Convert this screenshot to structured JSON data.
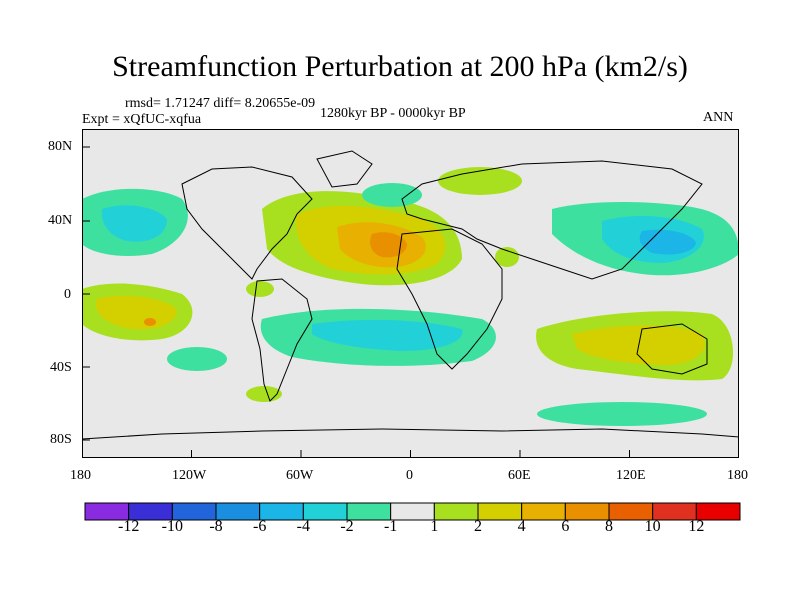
{
  "map": {
    "title": "Streamfunction Perturbation at 200 hPa (km2/s)",
    "stats_line": "rmsd= 1.71247 diff= 8.20655e-09",
    "experiment": "Expt = xQfUC-xqfua",
    "period": "1280kyr BP - 0000kyr BP",
    "season": "ANN",
    "lat_labels": [
      "80N",
      "40N",
      "0",
      "40S",
      "80S"
    ],
    "lon_labels": [
      "180",
      "120W",
      "60W",
      "0",
      "60E",
      "120E",
      "180"
    ]
  },
  "colorbar": {
    "labels": [
      "-12",
      "-10",
      "-8",
      "-6",
      "-4",
      "-2",
      "-1",
      "1",
      "2",
      "4",
      "6",
      "8",
      "10",
      "12"
    ],
    "colors": [
      "#8a2be2",
      "#3a2fd6",
      "#2264d9",
      "#1a8fe0",
      "#1cb5e8",
      "#22d0d8",
      "#3ee0a0",
      "#e8e8e8",
      "#a8e020",
      "#d4d000",
      "#e8b000",
      "#e89000",
      "#e86000",
      "#e03020",
      "#e80000"
    ]
  }
}
